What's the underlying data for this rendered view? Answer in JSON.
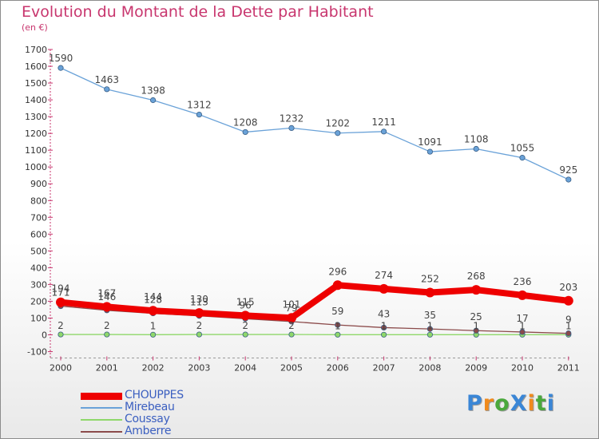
{
  "header": {
    "title": "Evolution du Montant de la Dette par Habitant",
    "subtitle": "(en €)"
  },
  "brand": {
    "letters": [
      {
        "char": "P",
        "color": "#3a86d6"
      },
      {
        "char": "r",
        "color": "#f08a1c"
      },
      {
        "char": "o",
        "color": "#4aa83c"
      },
      {
        "char": "X",
        "color": "#3a86d6"
      },
      {
        "char": "i",
        "color": "#f08a1c"
      },
      {
        "char": "t",
        "color": "#4aa83c"
      },
      {
        "char": "i",
        "color": "#3a86d6"
      }
    ]
  },
  "chart_data": {
    "type": "line",
    "title": "Evolution du Montant de la Dette par Habitant",
    "subtitle": "(en €)",
    "xlabel": "",
    "ylabel": "",
    "categories": [
      "2000",
      "2001",
      "2002",
      "2003",
      "2004",
      "2005",
      "2006",
      "2007",
      "2008",
      "2009",
      "2010",
      "2011"
    ],
    "ylim": [
      -100,
      1700
    ],
    "yticks": [
      -100,
      0,
      100,
      200,
      300,
      400,
      500,
      600,
      700,
      800,
      900,
      1000,
      1100,
      1200,
      1300,
      1400,
      1500,
      1600,
      1700
    ],
    "grid": false,
    "legend_position": "bottom-left",
    "series": [
      {
        "name": "CHOUPPES",
        "color": "#ee0000",
        "values": [
          194,
          167,
          144,
          130,
          115,
          101,
          296,
          274,
          252,
          268,
          236,
          203
        ],
        "labels": [
          "194",
          "167",
          "144",
          "130",
          "115",
          "101",
          "296",
          "274",
          "252",
          "268",
          "236",
          "203"
        ],
        "emphasis": true
      },
      {
        "name": "Mirebeau",
        "color": "#6aa2d8",
        "values": [
          1590,
          1463,
          1398,
          1312,
          1208,
          1232,
          1202,
          1211,
          1091,
          1108,
          1055,
          925
        ],
        "labels": [
          "1590",
          "1463",
          "1398",
          "1312",
          "1208",
          "1232",
          "1202",
          "1211",
          "1091",
          "1108",
          "1055",
          "925"
        ]
      },
      {
        "name": "Coussay",
        "color": "#8fd86a",
        "values": [
          2,
          2,
          1,
          2,
          2,
          2,
          1,
          1,
          1,
          1,
          1,
          1
        ],
        "labels": [
          "2",
          "2",
          "1",
          "2",
          "2",
          "2",
          "1",
          "1",
          "1",
          "1",
          "1",
          "1"
        ]
      },
      {
        "name": "Amberre",
        "color": "#8b4a4a",
        "values": [
          171,
          146,
          128,
          113,
          96,
          79,
          59,
          43,
          35,
          25,
          17,
          9
        ],
        "labels": [
          "171",
          "146",
          "128",
          "113",
          "96",
          "79",
          "59",
          "43",
          "35",
          "25",
          "17",
          "9"
        ]
      }
    ]
  }
}
